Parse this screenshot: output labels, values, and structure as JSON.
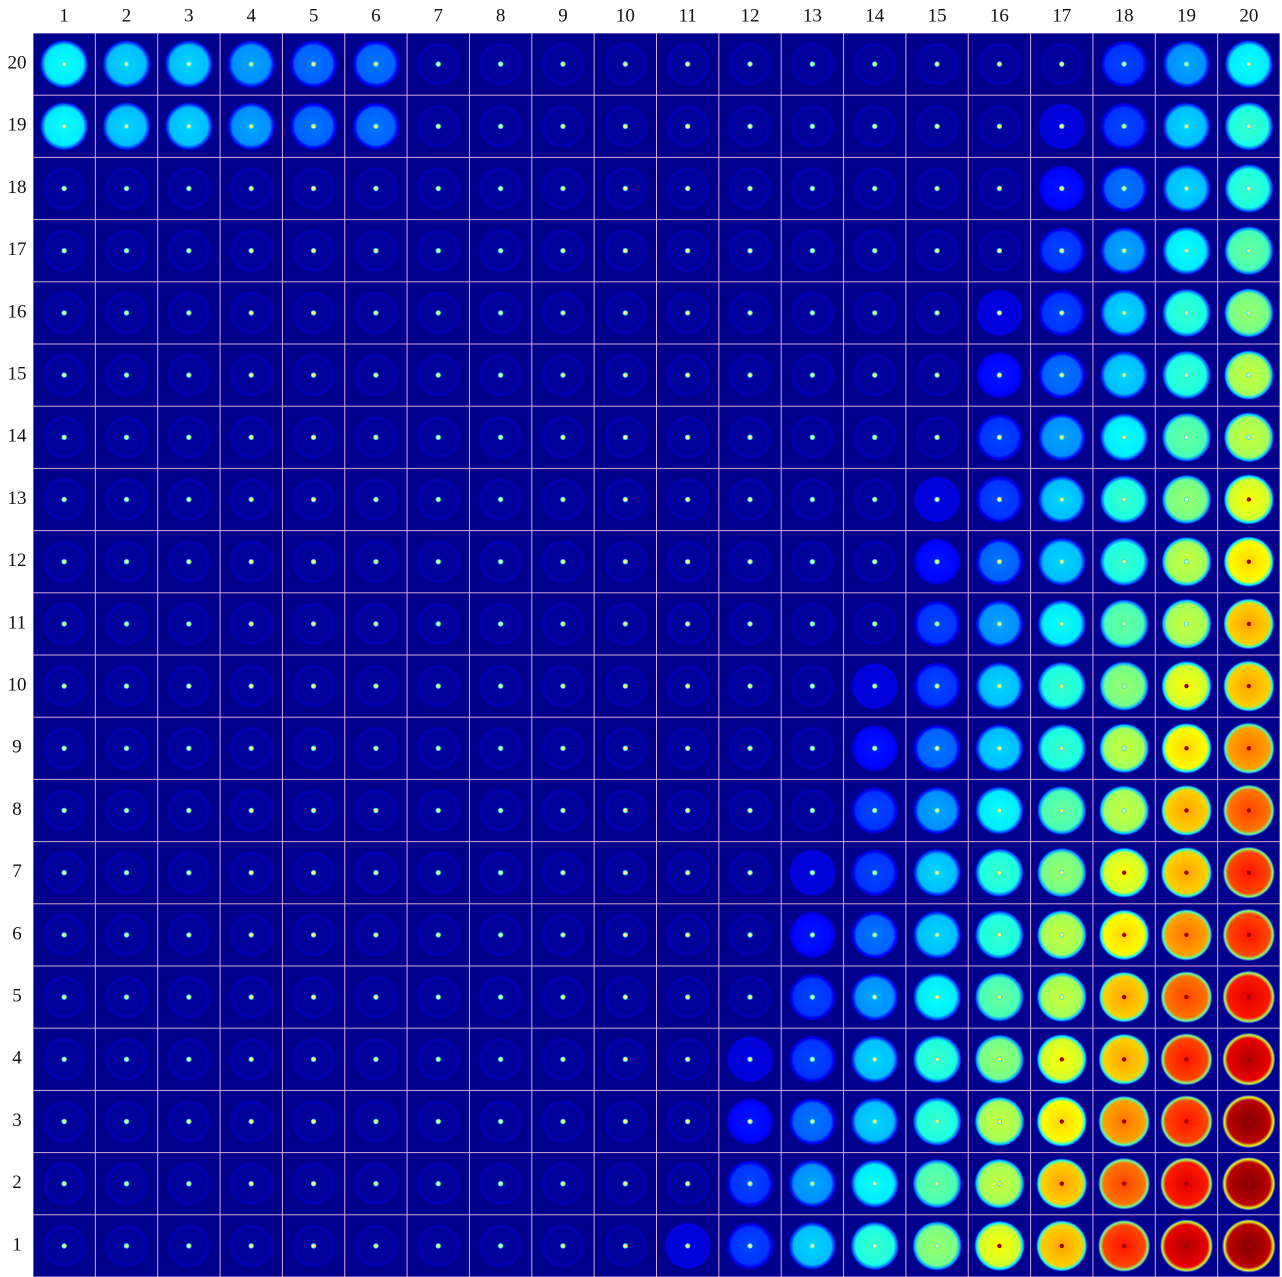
{
  "columns": [
    1,
    2,
    3,
    4,
    5,
    6,
    7,
    8,
    9,
    10,
    11,
    12,
    13,
    14,
    15,
    16,
    17,
    18,
    19,
    20
  ],
  "rows": [
    20,
    19,
    18,
    17,
    16,
    15,
    14,
    13,
    12,
    11,
    10,
    9,
    8,
    7,
    6,
    5,
    4,
    3,
    2,
    1
  ]
}
